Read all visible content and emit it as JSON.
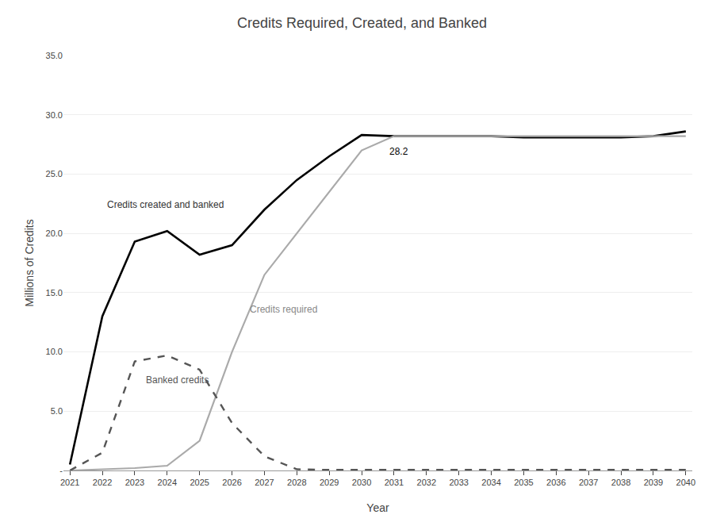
{
  "chart_data": {
    "type": "line",
    "title": "Credits Required, Created, and Banked",
    "xlabel": "Year",
    "ylabel": "Millions of Credits",
    "x": [
      2021,
      2022,
      2023,
      2024,
      2025,
      2026,
      2027,
      2028,
      2029,
      2030,
      2031,
      2032,
      2033,
      2034,
      2035,
      2036,
      2037,
      2038,
      2039,
      2040
    ],
    "series": [
      {
        "name": "Credits created and banked",
        "color": "#000000",
        "line_style": "solid",
        "values": [
          0.5,
          13.0,
          19.3,
          20.2,
          18.2,
          19.0,
          22.0,
          24.5,
          26.5,
          28.3,
          28.2,
          28.2,
          28.2,
          28.2,
          28.1,
          28.1,
          28.1,
          28.1,
          28.2,
          28.6
        ]
      },
      {
        "name": "Credits required",
        "color": "#aaaaaa",
        "line_style": "solid",
        "values": [
          0.0,
          0.1,
          0.2,
          0.4,
          2.5,
          10.0,
          16.5,
          20.0,
          23.5,
          27.0,
          28.2,
          28.2,
          28.2,
          28.2,
          28.2,
          28.2,
          28.2,
          28.2,
          28.2,
          28.2
        ]
      },
      {
        "name": "Banked credits",
        "color": "#555555",
        "line_style": "dashed",
        "values": [
          0.0,
          1.5,
          9.2,
          9.7,
          8.5,
          4.0,
          1.2,
          0.1,
          0.05,
          0.05,
          0.05,
          0.05,
          0.05,
          0.05,
          0.05,
          0.05,
          0.05,
          0.05,
          0.05,
          0.05
        ]
      }
    ],
    "annotations": [
      "28.2"
    ],
    "xlim": [
      2020.8,
      2040.2
    ],
    "xticks": [
      2021,
      2022,
      2023,
      2024,
      2025,
      2026,
      2027,
      2028,
      2029,
      2030,
      2031,
      2032,
      2033,
      2034,
      2035,
      2036,
      2037,
      2038,
      2039,
      2040
    ],
    "ylim": [
      0,
      35.0
    ],
    "yticks": [
      {
        "value": 0,
        "label": "-"
      },
      {
        "value": 5.0,
        "label": "5.0"
      },
      {
        "value": 10.0,
        "label": "10.0"
      },
      {
        "value": 15.0,
        "label": "15.0"
      },
      {
        "value": 20.0,
        "label": "20.0"
      },
      {
        "value": 25.0,
        "label": "25.0"
      },
      {
        "value": 30.0,
        "label": "30.0"
      },
      {
        "value": 35.0,
        "label": "35.0"
      }
    ],
    "grid": true
  }
}
